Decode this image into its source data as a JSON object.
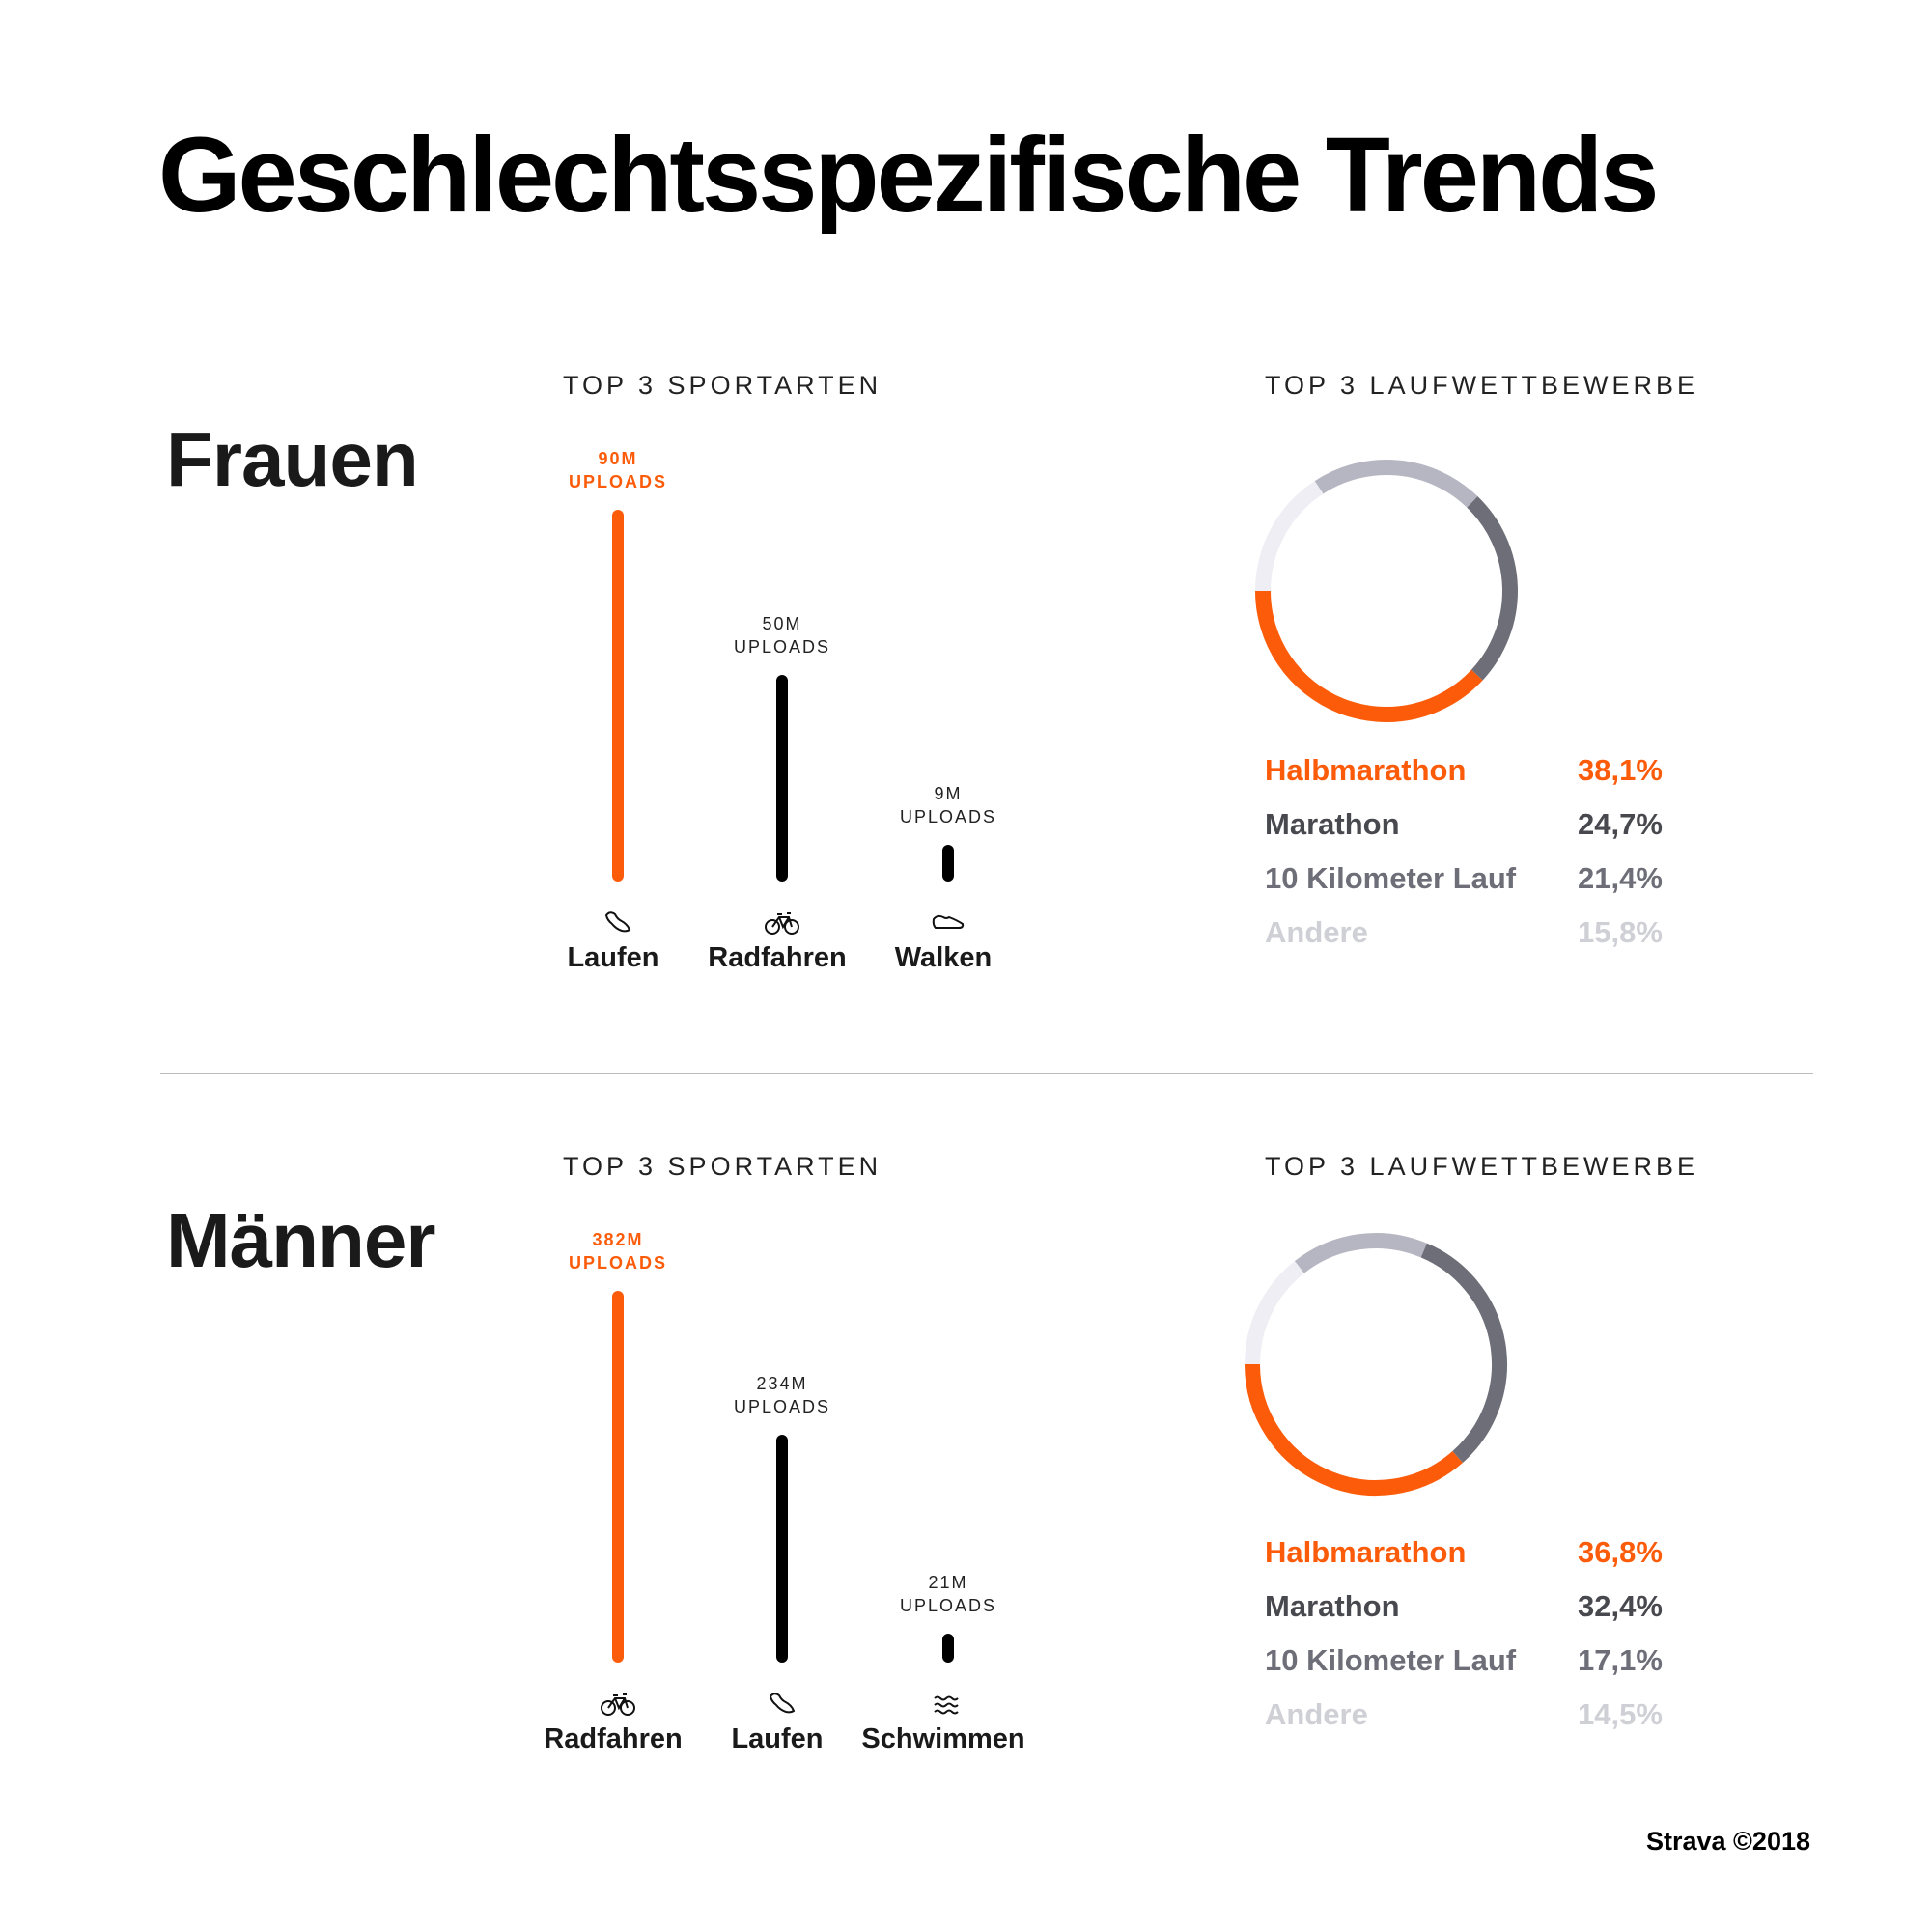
{
  "title": "Geschlechtsspezifische Trends",
  "footer": "Strava ©2018",
  "colors": {
    "accent": "#fc5c0a",
    "bar": "#000000",
    "donut": [
      "#fc5c0a",
      "#6e6e78",
      "#b6b6c2",
      "#eeeef4"
    ],
    "legend_text": [
      "#fc5c0a",
      "#48484f",
      "#6e6e78",
      "#cfcfd6"
    ]
  },
  "chart_data": [
    {
      "type": "bar",
      "group": "Frauen",
      "title": "TOP 3 SPORTARTEN",
      "categories": [
        "Laufen",
        "Radfahren",
        "Walken"
      ],
      "icons": [
        "running-shoe-icon",
        "bicycle-icon",
        "walking-shoe-icon"
      ],
      "values": [
        90,
        50,
        9
      ],
      "unit": "M",
      "labels": [
        [
          "90M",
          "UPLOADS"
        ],
        [
          "50M",
          "UPLOADS"
        ],
        [
          "9M",
          "UPLOADS"
        ]
      ]
    },
    {
      "type": "pie",
      "group": "Frauen",
      "title": "TOP 3 LAUFWETTBEWERBE",
      "categories": [
        "Halbmarathon",
        "Marathon",
        "10 Kilometer Lauf",
        "Andere"
      ],
      "values": [
        38.1,
        24.7,
        21.4,
        15.8
      ],
      "labels": [
        "38,1%",
        "24,7%",
        "21,4%",
        "15,8%"
      ]
    },
    {
      "type": "bar",
      "group": "Männer",
      "title": "TOP 3 SPORTARTEN",
      "categories": [
        "Radfahren",
        "Laufen",
        "Schwimmen"
      ],
      "icons": [
        "bicycle-icon",
        "running-shoe-icon",
        "swimming-waves-icon"
      ],
      "values": [
        382,
        234,
        21
      ],
      "unit": "M",
      "labels": [
        [
          "382M",
          "UPLOADS"
        ],
        [
          "234M",
          "UPLOADS"
        ],
        [
          "21M",
          "UPLOADS"
        ]
      ]
    },
    {
      "type": "pie",
      "group": "Männer",
      "title": "TOP 3 LAUFWETTBEWERBE",
      "categories": [
        "Halbmarathon",
        "Marathon",
        "10 Kilometer Lauf",
        "Andere"
      ],
      "values": [
        36.8,
        32.4,
        17.1,
        14.5
      ],
      "labels": [
        "36,8%",
        "32,4%",
        "17,1%",
        "14,5%"
      ]
    }
  ]
}
